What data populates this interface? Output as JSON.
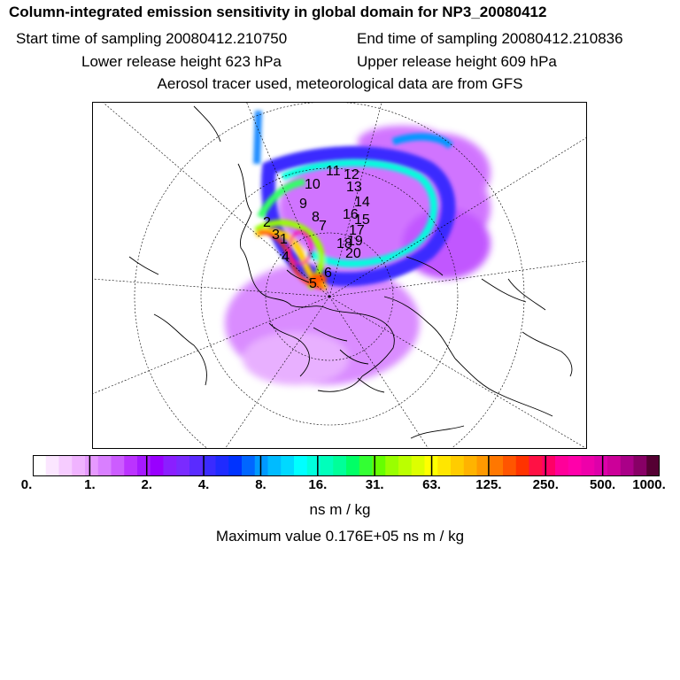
{
  "header": {
    "title": "Column-integrated emission sensitivity in global domain for NP3_20080412",
    "start": "Start time of sampling 20080412.210750",
    "end": "End time of sampling 20080412.210836",
    "lower": "Lower release height  623 hPa",
    "upper": "Upper release height  609 hPa",
    "tracer": "Aerosol tracer used, meteorological data are from GFS"
  },
  "colorbar": {
    "ticks": [
      "0.",
      "1.",
      "2.",
      "4.",
      "8.",
      "16.",
      "31.",
      "63.",
      "125.",
      "250.",
      "500.",
      "1000."
    ],
    "unit": "ns m / kg",
    "colors": [
      "#ffffff",
      "#fbe6ff",
      "#f6ccff",
      "#f0b3ff",
      "#e699ff",
      "#d97fff",
      "#cc5cff",
      "#bb33ff",
      "#a619ff",
      "#9900ff",
      "#8a1fff",
      "#7a2bff",
      "#5a2bff",
      "#3a2bff",
      "#1f2bff",
      "#0033ff",
      "#0066ff",
      "#0099ff",
      "#00bbff",
      "#00d9ff",
      "#00ffff",
      "#00ffdd",
      "#00ffbb",
      "#00ff99",
      "#00ff66",
      "#33ff33",
      "#66ff00",
      "#99ff00",
      "#bbff00",
      "#ddff00",
      "#ffff00",
      "#ffe600",
      "#ffcc00",
      "#ffb300",
      "#ff9900",
      "#ff7700",
      "#ff5500",
      "#ff3300",
      "#ff1144",
      "#ff0066",
      "#ff0099",
      "#ff00aa",
      "#ee00aa",
      "#dd00aa",
      "#cc0099",
      "#aa0088",
      "#880066",
      "#550033"
    ]
  },
  "maximum": "Maximum value  0.176E+05 ns m / kg",
  "map": {
    "point_labels": [
      "1",
      "2",
      "3",
      "4",
      "5",
      "6",
      "7",
      "8",
      "9",
      "10",
      "11",
      "12",
      "13",
      "14",
      "15",
      "16",
      "17",
      "18",
      "19",
      "20"
    ]
  }
}
